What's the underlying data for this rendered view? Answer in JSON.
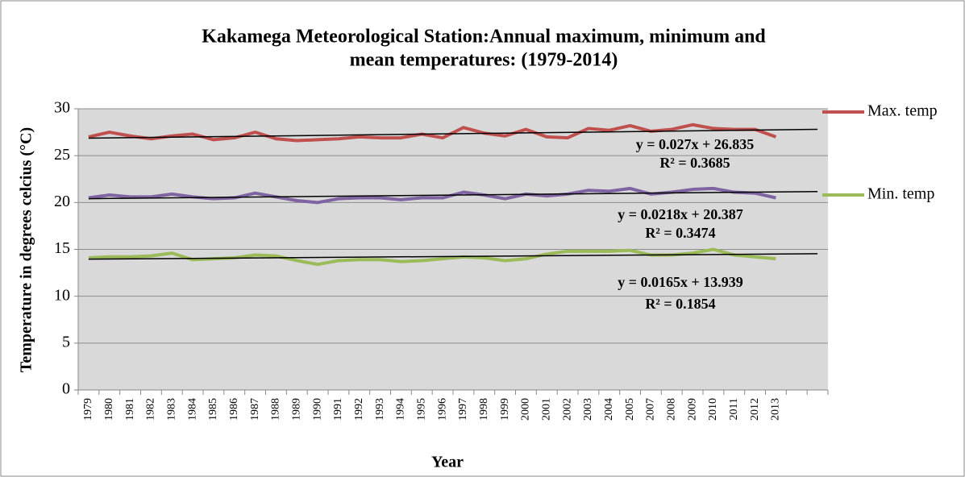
{
  "chart_data": {
    "type": "line",
    "title": [
      "Kakamega Meteorological Station:Annual maximum, minimum and",
      "mean temperatures: (1979-2014)"
    ],
    "x_label": "Year",
    "y_label": "Temperature in degrees celcius (°C)",
    "categories": [
      "1979",
      "1980",
      "1981",
      "1982",
      "1983",
      "1984",
      "1985",
      "1986",
      "1987",
      "1988",
      "1989",
      "1990",
      "1991",
      "1992",
      "1993",
      "1994",
      "1995",
      "1996",
      "1997",
      "1998",
      "1999",
      "2000",
      "2001",
      "2002",
      "2003",
      "2004",
      "2005",
      "2007",
      "2008",
      "2009",
      "2010",
      "2011",
      "2012",
      "2013",
      null,
      null
    ],
    "series": [
      {
        "name": "Max. temp",
        "color": "#c0504d",
        "values": [
          27.0,
          27.5,
          27.1,
          26.8,
          27.1,
          27.3,
          26.7,
          26.9,
          27.5,
          26.8,
          26.6,
          26.7,
          26.8,
          27.0,
          26.9,
          26.9,
          27.3,
          26.9,
          28.0,
          27.4,
          27.1,
          27.8,
          27.0,
          26.9,
          27.9,
          27.7,
          28.2,
          27.6,
          27.8,
          28.3,
          27.9,
          27.8,
          27.8,
          27.0,
          null,
          null
        ]
      },
      {
        "color": "#8064a2",
        "values": [
          20.5,
          20.8,
          20.6,
          20.6,
          20.9,
          20.6,
          20.4,
          20.5,
          21.0,
          20.6,
          20.2,
          20.0,
          20.4,
          20.5,
          20.5,
          20.3,
          20.5,
          20.5,
          21.1,
          20.8,
          20.4,
          20.9,
          20.7,
          20.9,
          21.3,
          21.2,
          21.5,
          20.9,
          21.1,
          21.4,
          21.5,
          21.1,
          21.0,
          20.5,
          null,
          null
        ]
      },
      {
        "name": "Min. temp",
        "color": "#9bbb59",
        "values": [
          14.1,
          14.2,
          14.2,
          14.3,
          14.6,
          13.9,
          14.0,
          14.1,
          14.4,
          14.3,
          13.8,
          13.4,
          13.8,
          13.9,
          13.9,
          13.7,
          13.8,
          14.0,
          14.2,
          14.1,
          13.8,
          14.0,
          14.5,
          14.8,
          14.8,
          14.8,
          14.9,
          14.4,
          14.4,
          14.6,
          15.0,
          14.4,
          14.2,
          14.0,
          null,
          null
        ]
      }
    ],
    "trendlines": [
      {
        "slope": 0.027,
        "intercept": 26.835,
        "equation": "y = 0.027x + 26.835",
        "r2": "R² = 0.3685"
      },
      {
        "slope": 0.0218,
        "intercept": 20.387,
        "equation": "y = 0.0218x + 20.387",
        "r2": "R² = 0.3474"
      },
      {
        "slope": 0.0165,
        "intercept": 13.939,
        "equation": "y = 0.0165x + 13.939",
        "r2": "R² = 0.1854"
      }
    ],
    "ylim": [
      0,
      30
    ],
    "yticks": [
      0,
      5,
      10,
      15,
      20,
      25,
      30
    ],
    "grid": true,
    "legend": "right"
  }
}
